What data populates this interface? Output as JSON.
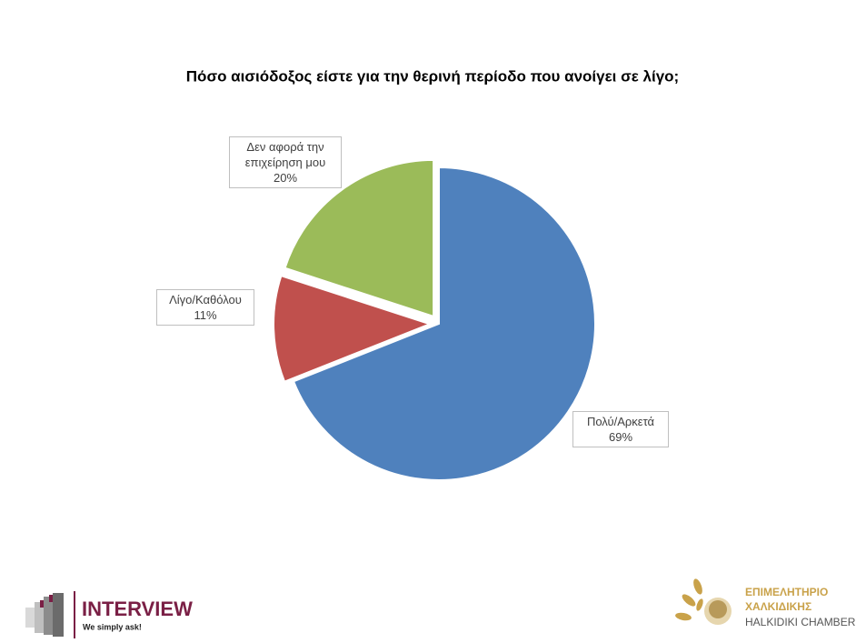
{
  "chart_data": {
    "type": "pie",
    "title": "Πόσο αισιόδοξος είστε για την θερινή περίοδο που ανοίγει σε λίγο;",
    "categories": [
      "Πολύ/Αρκετά",
      "Λίγο/Καθόλου",
      "Δεν αφορά την επιχείρηση μου"
    ],
    "values": [
      69,
      11,
      20
    ],
    "value_labels": [
      "69%",
      "11%",
      "20%"
    ],
    "colors": [
      "#4f81bd",
      "#c0504d",
      "#9bbb59"
    ]
  },
  "footer": {
    "left_brand": "INTERVIEW",
    "left_tagline": "We simply ask!",
    "right_line1": "ΕΠΙΜΕΛΗΤΗΡΙΟ",
    "right_line2": "ΧΑΛΚΙΔΙΚΗΣ",
    "right_line3": "HALKIDIKI CHAMBER"
  }
}
